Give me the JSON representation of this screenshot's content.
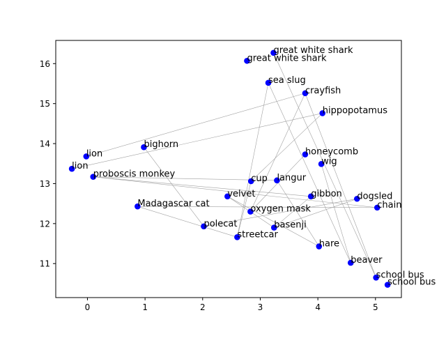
{
  "chart_data": {
    "type": "scatter",
    "title": "",
    "xlabel": "",
    "ylabel": "",
    "xlim": [
      -0.55,
      5.45
    ],
    "ylim": [
      10.15,
      16.58
    ],
    "xticks": [
      0,
      1,
      2,
      3,
      4,
      5
    ],
    "yticks": [
      11,
      12,
      13,
      14,
      15,
      16
    ],
    "xtick_labels": [
      "0",
      "1",
      "2",
      "3",
      "4",
      "5"
    ],
    "ytick_labels": [
      "11",
      "12",
      "13",
      "14",
      "15",
      "16"
    ],
    "grid": false,
    "marker_color": "#0000ff",
    "line_color": "#a0a0a0",
    "points": [
      {
        "label": "great white shark",
        "x": 3.23,
        "y": 16.27
      },
      {
        "label": "great white shark",
        "x": 2.77,
        "y": 16.07
      },
      {
        "label": "sea slug",
        "x": 3.14,
        "y": 15.52
      },
      {
        "label": "crayfish",
        "x": 3.78,
        "y": 15.26
      },
      {
        "label": "hippopotamus",
        "x": 4.08,
        "y": 14.76
      },
      {
        "label": "bighorn",
        "x": 0.98,
        "y": 13.91
      },
      {
        "label": "lion",
        "x": -0.02,
        "y": 13.68
      },
      {
        "label": "lion",
        "x": -0.27,
        "y": 13.37
      },
      {
        "label": "honeycomb",
        "x": 3.78,
        "y": 13.73
      },
      {
        "label": "wig",
        "x": 4.06,
        "y": 13.49
      },
      {
        "label": "proboscis monkey",
        "x": 0.1,
        "y": 13.17
      },
      {
        "label": "cup",
        "x": 2.84,
        "y": 13.06
      },
      {
        "label": "langur",
        "x": 3.29,
        "y": 13.08
      },
      {
        "label": "velvet",
        "x": 2.43,
        "y": 12.68
      },
      {
        "label": "gibbon",
        "x": 3.88,
        "y": 12.68
      },
      {
        "label": "dogsled",
        "x": 4.68,
        "y": 12.62
      },
      {
        "label": "Madagascar cat",
        "x": 0.87,
        "y": 12.43
      },
      {
        "label": "chain",
        "x": 5.03,
        "y": 12.4
      },
      {
        "label": "oxygen mask",
        "x": 2.83,
        "y": 12.3
      },
      {
        "label": "polecat",
        "x": 2.02,
        "y": 11.93
      },
      {
        "label": "basenji",
        "x": 3.24,
        "y": 11.9
      },
      {
        "label": "streetcar",
        "x": 2.6,
        "y": 11.66
      },
      {
        "label": "hare",
        "x": 4.02,
        "y": 11.43
      },
      {
        "label": "beaver",
        "x": 4.57,
        "y": 11.02
      },
      {
        "label": "school bus",
        "x": 5.01,
        "y": 10.65
      },
      {
        "label": "school bus",
        "x": 5.21,
        "y": 10.47
      }
    ],
    "connections": [
      [
        6,
        3
      ],
      [
        7,
        4
      ],
      [
        10,
        12
      ],
      [
        10,
        14
      ],
      [
        10,
        17
      ],
      [
        5,
        19
      ],
      [
        16,
        17
      ],
      [
        16,
        21
      ],
      [
        13,
        20
      ],
      [
        13,
        22
      ],
      [
        19,
        15
      ],
      [
        21,
        11
      ],
      [
        21,
        2
      ],
      [
        18,
        3
      ],
      [
        18,
        8
      ],
      [
        20,
        15
      ],
      [
        2,
        23
      ],
      [
        0,
        24
      ],
      [
        3,
        24
      ],
      [
        9,
        23
      ],
      [
        12,
        22
      ],
      [
        11,
        4
      ],
      [
        14,
        20
      ]
    ]
  }
}
